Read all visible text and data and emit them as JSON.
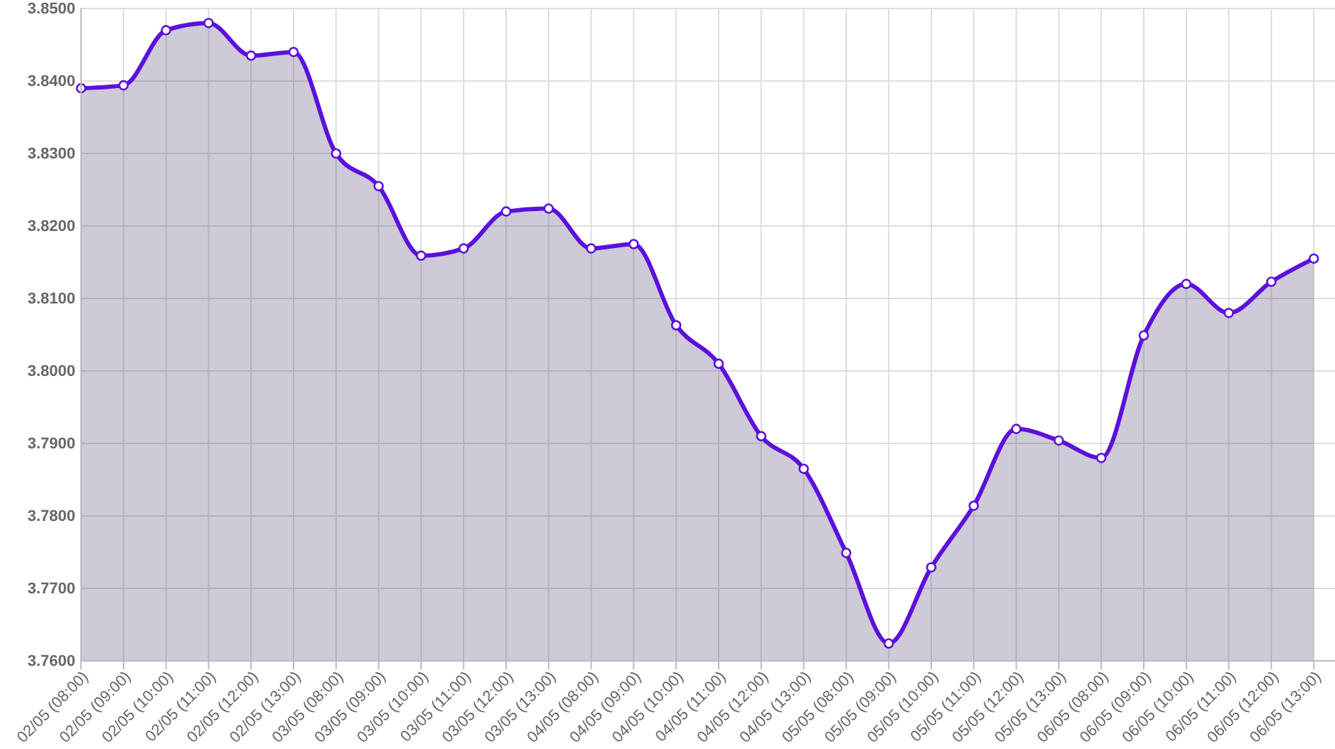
{
  "chart_data": {
    "type": "area",
    "categories": [
      "02/05 (08:00)",
      "02/05 (09:00)",
      "02/05 (10:00)",
      "02/05 (11:00)",
      "02/05 (12:00)",
      "02/05 (13:00)",
      "03/05 (08:00)",
      "03/05 (09:00)",
      "03/05 (10:00)",
      "03/05 (11:00)",
      "03/05 (12:00)",
      "03/05 (13:00)",
      "04/05 (08:00)",
      "04/05 (09:00)",
      "04/05 (10:00)",
      "04/05 (11:00)",
      "04/05 (12:00)",
      "04/05 (13:00)",
      "05/05 (08:00)",
      "05/05 (09:00)",
      "05/05 (10:00)",
      "05/05 (11:00)",
      "05/05 (12:00)",
      "05/05 (13:00)",
      "06/05 (08:00)",
      "06/05 (09:00)",
      "06/05 (10:00)",
      "06/05 (11:00)",
      "06/05 (12:00)",
      "06/05 (13:00)"
    ],
    "series": [
      {
        "color": "#5c10dc",
        "values": [
          3.839,
          3.8394,
          3.847,
          3.848,
          3.8435,
          3.844,
          3.83,
          3.8255,
          3.8159,
          3.8169,
          3.822,
          3.8224,
          3.8169,
          3.8175,
          3.8063,
          3.801,
          3.791,
          3.7865,
          3.7749,
          3.7624,
          3.7729,
          3.7814,
          3.792,
          3.7904,
          3.788,
          3.8049,
          3.812,
          3.808,
          3.8123,
          3.8155
        ]
      }
    ],
    "ylim": [
      3.76,
      3.85
    ],
    "yticks": [
      {
        "value": 3.76,
        "label": "3.7600"
      },
      {
        "value": 3.77,
        "label": "3.7700"
      },
      {
        "value": 3.78,
        "label": "3.7800"
      },
      {
        "value": 3.79,
        "label": "3.7900"
      },
      {
        "value": 3.8,
        "label": "3.8000"
      },
      {
        "value": 3.81,
        "label": "3.8100"
      },
      {
        "value": 3.82,
        "label": "3.8200"
      },
      {
        "value": 3.83,
        "label": "3.8300"
      },
      {
        "value": 3.84,
        "label": "3.8400"
      },
      {
        "value": 3.85,
        "label": "3.8500"
      }
    ],
    "grid": true,
    "marker": "circle",
    "line_style": "solid"
  }
}
